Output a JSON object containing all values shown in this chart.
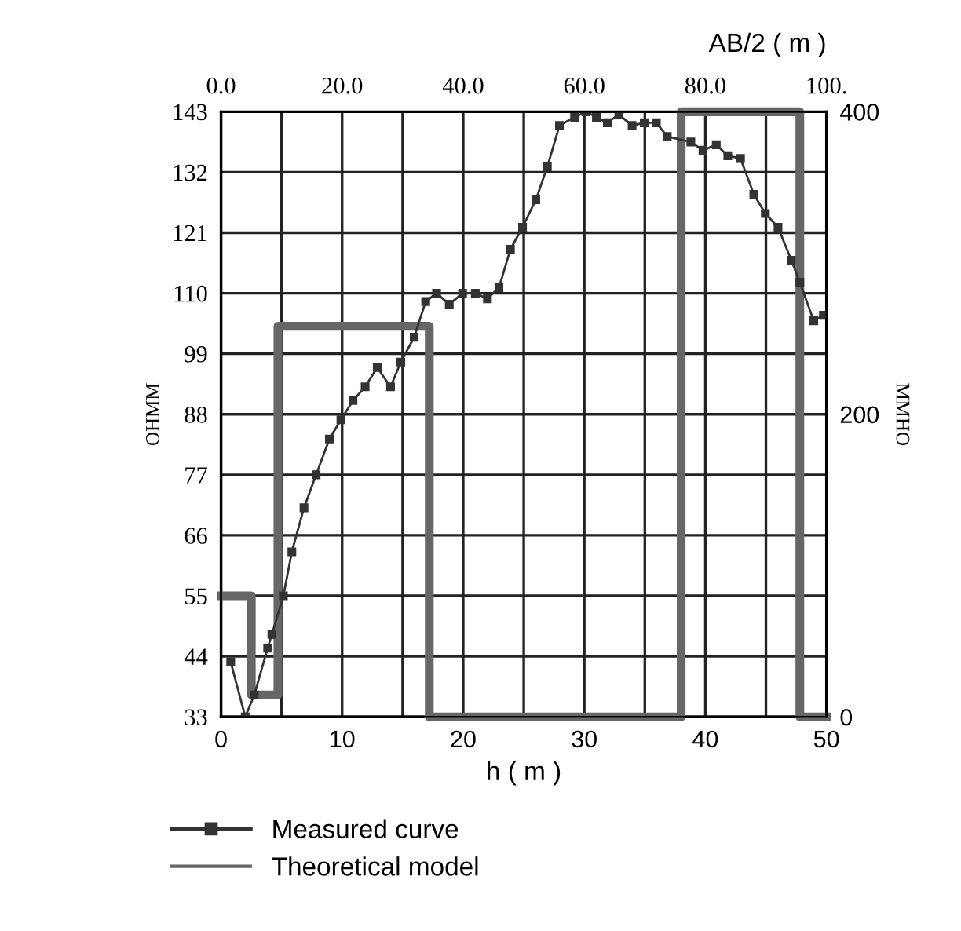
{
  "chart_data": {
    "type": "line",
    "xlabel": "h ( m )",
    "x2label": "AB/2 ( m )",
    "ylabel": "OHMM",
    "y2label": "MMHO",
    "xlim": [
      0,
      50
    ],
    "xticks": [
      0,
      {
        "value": 5,
        "label": null
      },
      10,
      {
        "value": 15,
        "label": null
      },
      20,
      {
        "value": 25,
        "label": null
      },
      30,
      {
        "value": 35,
        "label": null
      },
      40,
      {
        "value": 45,
        "label": null
      },
      50
    ],
    "x2lim": [
      0,
      100
    ],
    "x2ticks": [
      {
        "value": 0,
        "label": "0.0"
      },
      {
        "value": 20,
        "label": "20.0"
      },
      {
        "value": 40,
        "label": "40.0"
      },
      {
        "value": 60,
        "label": "60.0"
      },
      {
        "value": 80,
        "label": "80.0"
      },
      {
        "value": 100,
        "label": "100."
      }
    ],
    "ylim": [
      33,
      143
    ],
    "yticks": [
      33,
      44,
      55,
      66,
      77,
      88,
      99,
      110,
      121,
      132,
      143
    ],
    "y2lim": [
      0,
      400
    ],
    "y2ticks": [
      0,
      200,
      400
    ],
    "grid": true,
    "legend": "bottom left",
    "series": [
      {
        "name": "Measured curve",
        "axis": "x2",
        "marker": "square",
        "line_style": "solid",
        "color": "#333333",
        "x": [
          1.6,
          4.0,
          5.5,
          7.7,
          8.4,
          10.3,
          11.7,
          13.7,
          15.7,
          17.9,
          19.8,
          21.8,
          23.8,
          25.8,
          28.0,
          29.7,
          31.9,
          33.8,
          35.6,
          37.7,
          39.9,
          42.0,
          44.0,
          45.9,
          47.8,
          49.8,
          52.0,
          53.9,
          55.9,
          58.4,
          60.3,
          62.0,
          63.8,
          65.7,
          67.9,
          69.9,
          71.9,
          73.7,
          77.6,
          79.6,
          81.8,
          83.7,
          85.8,
          88.0,
          89.9,
          92.0,
          94.2,
          95.6,
          97.9,
          99.5
        ],
        "values": [
          43,
          33,
          37,
          45.5,
          48,
          55,
          63,
          71,
          77,
          83.5,
          87,
          90.5,
          93,
          96.5,
          93,
          97.5,
          102,
          108.5,
          110,
          108,
          110,
          110,
          109,
          111,
          118,
          122,
          127,
          133,
          140.5,
          142,
          143,
          142,
          141,
          142.5,
          140.5,
          141,
          141,
          138.5,
          137.5,
          136,
          137,
          135,
          134.5,
          128,
          124.5,
          122,
          116,
          112,
          105,
          106
        ]
      },
      {
        "name": "Theoretical model",
        "type": "step",
        "color": "#666666",
        "x": [
          0,
          2.5,
          4.7,
          17.2,
          38,
          47.8,
          50
        ],
        "values": [
          55,
          37,
          104,
          33,
          143,
          33,
          33
        ]
      }
    ]
  }
}
